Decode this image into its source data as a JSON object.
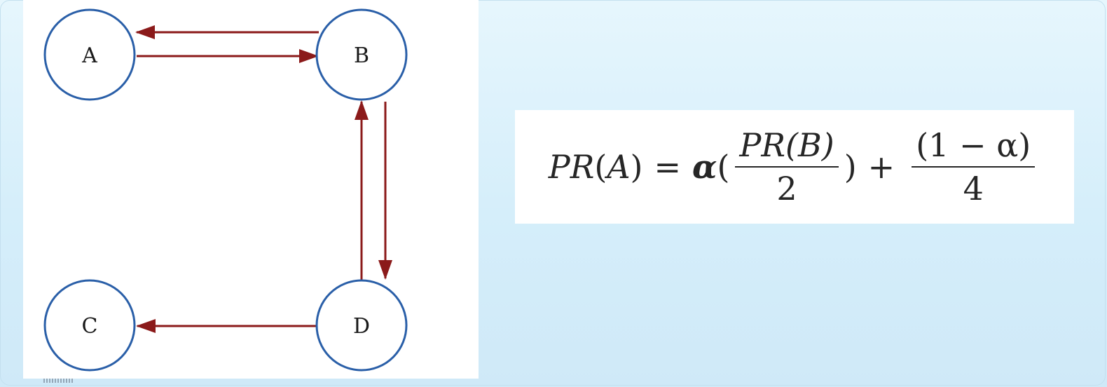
{
  "graph": {
    "nodes": [
      {
        "id": "A",
        "label": "A"
      },
      {
        "id": "B",
        "label": "B"
      },
      {
        "id": "C",
        "label": "C"
      },
      {
        "id": "D",
        "label": "D"
      }
    ],
    "edges": [
      {
        "from": "B",
        "to": "A"
      },
      {
        "from": "A",
        "to": "B"
      },
      {
        "from": "D",
        "to": "B"
      },
      {
        "from": "B",
        "to": "D"
      },
      {
        "from": "D",
        "to": "C"
      }
    ],
    "colors": {
      "node_stroke": "#2a5fa8",
      "edge": "#8b1a1a"
    }
  },
  "formula": {
    "lhs_p": "P",
    "lhs_r": "R",
    "lhs_open": "(",
    "lhs_a": "A",
    "lhs_close": ")",
    "equals": "=",
    "alpha": "α",
    "paren_open": "(",
    "frac1_num": "PR(B)",
    "frac1_den": "2",
    "paren_close": ")",
    "plus": "+",
    "frac2_num": "(1 − α)",
    "frac2_den": "4"
  }
}
